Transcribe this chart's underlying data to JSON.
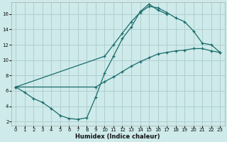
{
  "xlabel": "Humidex (Indice chaleur)",
  "bg_color": "#ceeaea",
  "grid_color": "#b0cfcf",
  "line_color": "#1a6b6b",
  "xlim": [
    -0.5,
    23.5
  ],
  "ylim": [
    1.5,
    17.5
  ],
  "xticks": [
    0,
    1,
    2,
    3,
    4,
    5,
    6,
    7,
    8,
    9,
    10,
    11,
    12,
    13,
    14,
    15,
    16,
    17,
    18,
    19,
    20,
    21,
    22,
    23
  ],
  "yticks": [
    2,
    4,
    6,
    8,
    10,
    12,
    14,
    16
  ],
  "line1_x": [
    0,
    1,
    2,
    3,
    4,
    5,
    6,
    7,
    8,
    9,
    10,
    11,
    12,
    13,
    14,
    15,
    16,
    17
  ],
  "line1_y": [
    6.5,
    5.8,
    5.0,
    4.5,
    3.7,
    2.8,
    2.4,
    2.3,
    2.5,
    5.2,
    8.3,
    10.5,
    12.8,
    14.3,
    16.3,
    17.3,
    16.5,
    16.0
  ],
  "line2_x": [
    0,
    10,
    11,
    12,
    13,
    14,
    15,
    16,
    17,
    18,
    19,
    20,
    21,
    22,
    23
  ],
  "line2_y": [
    6.5,
    10.5,
    12.0,
    13.5,
    15.0,
    16.2,
    17.0,
    16.8,
    16.2,
    15.5,
    15.0,
    13.8,
    12.2,
    12.0,
    11.0
  ],
  "line3_x": [
    0,
    9,
    10,
    11,
    12,
    13,
    14,
    15,
    16,
    17,
    18,
    19,
    20,
    21,
    22,
    23
  ],
  "line3_y": [
    6.5,
    6.5,
    7.2,
    7.8,
    8.5,
    9.2,
    9.8,
    10.3,
    10.8,
    11.0,
    11.2,
    11.3,
    11.5,
    11.5,
    11.2,
    11.0
  ]
}
